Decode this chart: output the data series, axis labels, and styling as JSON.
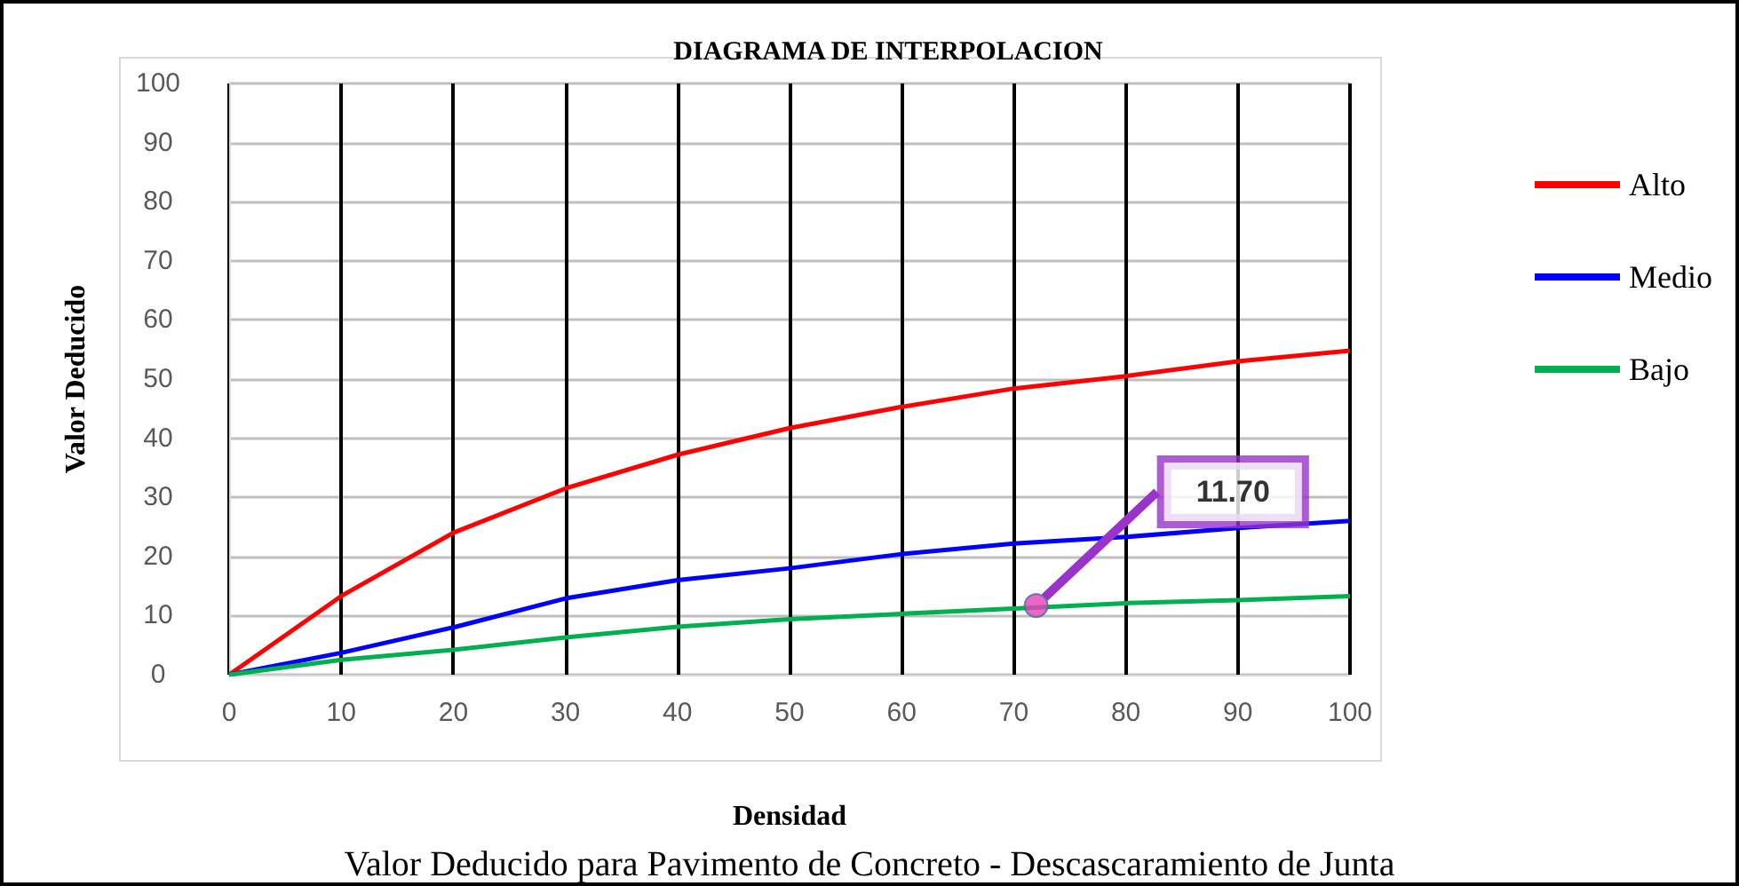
{
  "chart_data": {
    "type": "line",
    "title": "DIAGRAMA DE INTERPOLACION",
    "xlabel": "Densidad",
    "ylabel": "Valor Deducido",
    "annotations": [
      "Valor Deducido para Pavimento de Concreto - Descascaramiento de Junta"
    ],
    "x": [
      0,
      10,
      20,
      30,
      40,
      50,
      60,
      70,
      80,
      90,
      100
    ],
    "series": [
      {
        "name": "Alto",
        "color": "#ff0000",
        "values": [
          0,
          13.3,
          24,
          31.5,
          37.2,
          41.7,
          45.3,
          48.4,
          50.5,
          53,
          54.8
        ]
      },
      {
        "name": "Medio",
        "color": "#0000ff",
        "values": [
          0,
          3.7,
          8,
          12.9,
          16,
          18,
          20.4,
          22.2,
          23.3,
          24.8,
          26
        ]
      },
      {
        "name": "Bajo",
        "color": "#00b050",
        "values": [
          0,
          2.5,
          4.2,
          6.3,
          8.1,
          9.4,
          10.3,
          11.2,
          12.1,
          12.6,
          13.3
        ]
      },
      {
        "type": "scatter",
        "marker": "circle",
        "color": "#e83fb8",
        "x": [
          72
        ],
        "values": [
          11.7
        ],
        "value_labels": [
          "11.70"
        ]
      }
    ],
    "xlim": [
      0,
      100
    ],
    "xticks": [
      0,
      10,
      20,
      30,
      40,
      50,
      60,
      70,
      80,
      90,
      100
    ],
    "ylim": [
      0,
      100
    ],
    "yticks": [
      0,
      10,
      20,
      30,
      40,
      50,
      60,
      70,
      80,
      90,
      100
    ],
    "grid": true,
    "legend": "right",
    "marker": "none",
    "line_style": "solid"
  }
}
